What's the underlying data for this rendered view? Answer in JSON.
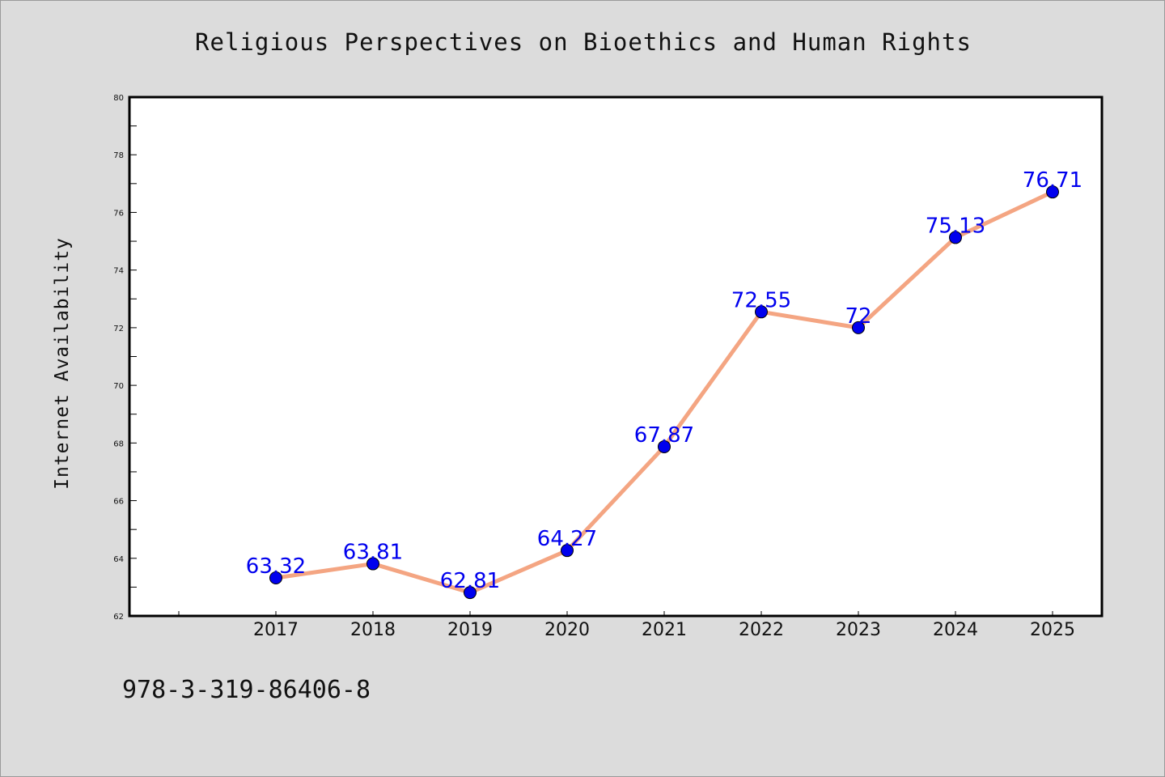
{
  "chart_data": {
    "type": "line",
    "title": "Religious Perspectives on Bioethics and Human Rights",
    "xlabel": "",
    "ylabel": "Internet Availability",
    "x": [
      "2017",
      "2018",
      "2019",
      "2020",
      "2021",
      "2022",
      "2023",
      "2024",
      "2025"
    ],
    "values": [
      63.32,
      63.81,
      62.81,
      64.27,
      67.87,
      72.55,
      72,
      75.13,
      76.71
    ],
    "data_labels": [
      "63.32",
      "63.81",
      "62.81",
      "64.27",
      "67.87",
      "72.55",
      "72",
      "75.13",
      "76.71"
    ],
    "ylim": [
      62,
      80
    ],
    "yticks": [
      "62",
      "64",
      "66",
      "68",
      "70",
      "72",
      "74",
      "76",
      "78",
      "80"
    ],
    "grid": false,
    "legend": "none",
    "line_color": "#f4a582",
    "marker_color": "#0000ee",
    "label_color": "#0000ee"
  },
  "footer": {
    "code": "978-3-319-86406-8"
  }
}
